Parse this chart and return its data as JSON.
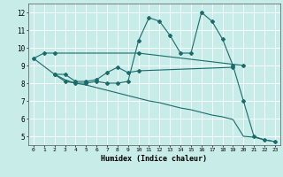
{
  "xlabel": "Humidex (Indice chaleur)",
  "xlim": [
    -0.5,
    23.5
  ],
  "ylim": [
    4.5,
    12.5
  ],
  "xticks": [
    0,
    1,
    2,
    3,
    4,
    5,
    6,
    7,
    8,
    9,
    10,
    11,
    12,
    13,
    14,
    15,
    16,
    17,
    18,
    19,
    20,
    21,
    22,
    23
  ],
  "yticks": [
    5,
    6,
    7,
    8,
    9,
    10,
    11,
    12
  ],
  "bg_color": "#c8ece8",
  "line_color": "#1a6b6b",
  "grid_color": "#ffffff",
  "series": [
    {
      "x": [
        0,
        1,
        2,
        10,
        20
      ],
      "y": [
        9.4,
        9.7,
        9.7,
        9.7,
        9.0
      ],
      "marker": "D",
      "markersize": 2.0,
      "linewidth": 0.8
    },
    {
      "x": [
        2,
        3,
        4,
        5,
        6,
        7,
        8,
        9,
        10,
        19
      ],
      "y": [
        8.5,
        8.5,
        8.1,
        8.1,
        8.2,
        8.6,
        8.9,
        8.6,
        8.7,
        8.9
      ],
      "marker": "D",
      "markersize": 2.0,
      "linewidth": 0.8
    },
    {
      "x": [
        2,
        3,
        4,
        5,
        6,
        7,
        8,
        9,
        10,
        11,
        12,
        13,
        14,
        15,
        16,
        17,
        18,
        19,
        20,
        21,
        22,
        23
      ],
      "y": [
        8.5,
        8.1,
        8.0,
        8.0,
        8.1,
        8.0,
        8.0,
        8.1,
        10.4,
        11.7,
        11.5,
        10.7,
        9.7,
        9.7,
        12.0,
        11.5,
        10.5,
        9.0,
        7.0,
        5.0,
        4.8,
        4.7
      ],
      "marker": "D",
      "markersize": 2.0,
      "linewidth": 0.8
    },
    {
      "x": [
        0,
        2,
        3,
        4,
        5,
        6,
        7,
        8,
        9,
        10,
        11,
        12,
        13,
        14,
        15,
        16,
        17,
        18,
        19,
        20,
        21,
        22,
        23
      ],
      "y": [
        9.4,
        8.5,
        8.2,
        8.0,
        7.9,
        7.75,
        7.6,
        7.45,
        7.3,
        7.15,
        7.0,
        6.9,
        6.75,
        6.6,
        6.5,
        6.35,
        6.2,
        6.1,
        5.95,
        5.0,
        4.95,
        4.8,
        4.7
      ],
      "marker": null,
      "markersize": 0,
      "linewidth": 0.8
    }
  ]
}
